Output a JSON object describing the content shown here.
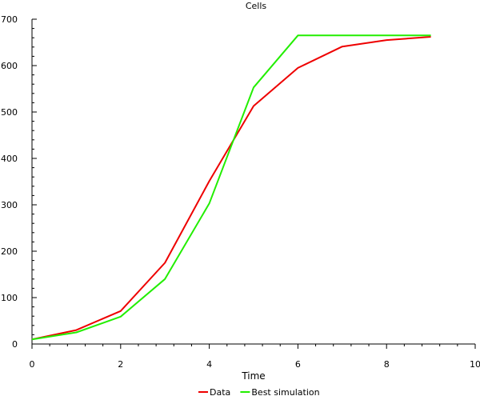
{
  "chart_data": {
    "type": "line",
    "title": "Cells",
    "xlabel": "Time",
    "ylabel": "",
    "xlim": [
      0,
      10
    ],
    "ylim": [
      0,
      700
    ],
    "xticks": [
      0,
      2,
      4,
      6,
      8,
      10
    ],
    "yticks": [
      0,
      100,
      200,
      300,
      400,
      500,
      600,
      700
    ],
    "grid": false,
    "legend_position": "bottom",
    "series": [
      {
        "name": "Data",
        "color": "#ee0000",
        "x": [
          0,
          1,
          2,
          3,
          4,
          5,
          6,
          7,
          8,
          9
        ],
        "y": [
          10,
          30,
          71,
          175,
          351,
          513,
          595,
          641,
          655,
          662
        ]
      },
      {
        "name": "Best simulation",
        "color": "#22ee00",
        "x": [
          0,
          1,
          2,
          3,
          4,
          5,
          6,
          7,
          8,
          9
        ],
        "y": [
          10,
          25,
          59,
          140,
          303,
          553,
          665,
          665,
          665,
          665
        ]
      }
    ]
  }
}
